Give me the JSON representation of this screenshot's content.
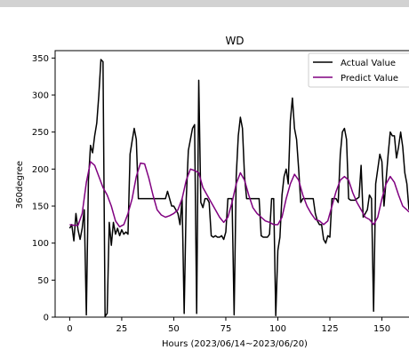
{
  "chart_data": {
    "type": "line",
    "title": "WD",
    "xlabel": "Hours (2023/06/14~2023/06/20)",
    "ylabel": "360degree",
    "xlim": [
      -7,
      166
    ],
    "ylim": [
      0,
      360
    ],
    "x_ticks": [
      0,
      25,
      50,
      75,
      100,
      125,
      150
    ],
    "y_ticks": [
      0,
      50,
      100,
      150,
      200,
      250,
      300,
      350
    ],
    "grid": false,
    "legend": "top-right",
    "series": [
      {
        "name": "Actual Value",
        "color": "#000000",
        "points": [
          [
            0,
            120
          ],
          [
            1,
            125
          ],
          [
            2,
            103
          ],
          [
            3,
            140
          ],
          [
            4,
            118
          ],
          [
            5,
            105
          ],
          [
            6,
            120
          ],
          [
            7,
            145
          ],
          [
            8,
            3
          ],
          [
            9,
            185
          ],
          [
            10,
            232
          ],
          [
            11,
            222
          ],
          [
            12,
            245
          ],
          [
            13,
            262
          ],
          [
            14,
            300
          ],
          [
            15,
            348
          ],
          [
            16,
            345
          ],
          [
            17,
            1
          ],
          [
            18,
            5
          ],
          [
            19,
            128
          ],
          [
            20,
            97
          ],
          [
            21,
            128
          ],
          [
            22,
            112
          ],
          [
            23,
            120
          ],
          [
            24,
            110
          ],
          [
            25,
            118
          ],
          [
            26,
            112
          ],
          [
            27,
            115
          ],
          [
            28,
            112
          ],
          [
            29,
            220
          ],
          [
            30,
            238
          ],
          [
            31,
            255
          ],
          [
            32,
            240
          ],
          [
            33,
            160
          ],
          [
            34,
            160
          ],
          [
            35,
            160
          ],
          [
            36,
            160
          ],
          [
            37,
            160
          ],
          [
            38,
            160
          ],
          [
            39,
            160
          ],
          [
            40,
            160
          ],
          [
            41,
            160
          ],
          [
            42,
            160
          ],
          [
            43,
            160
          ],
          [
            44,
            160
          ],
          [
            45,
            160
          ],
          [
            46,
            160
          ],
          [
            47,
            170
          ],
          [
            48,
            160
          ],
          [
            49,
            150
          ],
          [
            50,
            150
          ],
          [
            51,
            145
          ],
          [
            52,
            140
          ],
          [
            53,
            125
          ],
          [
            54,
            160
          ],
          [
            55,
            5
          ],
          [
            56,
            160
          ],
          [
            57,
            225
          ],
          [
            58,
            240
          ],
          [
            59,
            255
          ],
          [
            60,
            260
          ],
          [
            61,
            5
          ],
          [
            62,
            320
          ],
          [
            63,
            155
          ],
          [
            64,
            148
          ],
          [
            65,
            160
          ],
          [
            66,
            160
          ],
          [
            67,
            155
          ],
          [
            68,
            110
          ],
          [
            69,
            108
          ],
          [
            70,
            110
          ],
          [
            71,
            108
          ],
          [
            72,
            108
          ],
          [
            73,
            110
          ],
          [
            74,
            105
          ],
          [
            75,
            115
          ],
          [
            76,
            160
          ],
          [
            77,
            160
          ],
          [
            78,
            160
          ],
          [
            79,
            3
          ],
          [
            80,
            190
          ],
          [
            81,
            245
          ],
          [
            82,
            270
          ],
          [
            83,
            255
          ],
          [
            84,
            190
          ],
          [
            85,
            160
          ],
          [
            86,
            160
          ],
          [
            87,
            160
          ],
          [
            88,
            160
          ],
          [
            89,
            160
          ],
          [
            90,
            160
          ],
          [
            91,
            160
          ],
          [
            92,
            110
          ],
          [
            93,
            108
          ],
          [
            94,
            108
          ],
          [
            95,
            108
          ],
          [
            96,
            112
          ],
          [
            97,
            160
          ],
          [
            98,
            160
          ],
          [
            99,
            2
          ],
          [
            100,
            90
          ],
          [
            101,
            108
          ],
          [
            102,
            165
          ],
          [
            103,
            190
          ],
          [
            104,
            200
          ],
          [
            105,
            180
          ],
          [
            106,
            265
          ],
          [
            107,
            296
          ],
          [
            108,
            255
          ],
          [
            109,
            240
          ],
          [
            110,
            200
          ],
          [
            111,
            155
          ],
          [
            112,
            160
          ],
          [
            113,
            160
          ],
          [
            114,
            160
          ],
          [
            115,
            160
          ],
          [
            116,
            160
          ],
          [
            117,
            160
          ],
          [
            118,
            140
          ],
          [
            119,
            130
          ],
          [
            120,
            125
          ],
          [
            121,
            125
          ],
          [
            122,
            105
          ],
          [
            123,
            100
          ],
          [
            124,
            110
          ],
          [
            125,
            108
          ],
          [
            126,
            160
          ],
          [
            127,
            160
          ],
          [
            128,
            160
          ],
          [
            129,
            155
          ],
          [
            130,
            220
          ],
          [
            131,
            250
          ],
          [
            132,
            255
          ],
          [
            133,
            240
          ],
          [
            134,
            160
          ],
          [
            135,
            158
          ],
          [
            136,
            158
          ],
          [
            137,
            158
          ],
          [
            138,
            160
          ],
          [
            139,
            162
          ],
          [
            140,
            205
          ],
          [
            141,
            135
          ],
          [
            142,
            140
          ],
          [
            143,
            145
          ],
          [
            144,
            165
          ],
          [
            145,
            160
          ],
          [
            146,
            8
          ],
          [
            147,
            180
          ],
          [
            148,
            200
          ],
          [
            149,
            220
          ],
          [
            150,
            210
          ],
          [
            151,
            150
          ],
          [
            152,
            185
          ],
          [
            153,
            220
          ],
          [
            154,
            250
          ],
          [
            155,
            245
          ],
          [
            156,
            245
          ],
          [
            157,
            215
          ],
          [
            158,
            230
          ],
          [
            159,
            250
          ],
          [
            160,
            230
          ],
          [
            161,
            195
          ],
          [
            162,
            180
          ],
          [
            163,
            145
          ]
        ]
      },
      {
        "name": "Predict Value",
        "color": "#800080",
        "points": [
          [
            0,
            125
          ],
          [
            2,
            124
          ],
          [
            4,
            124
          ],
          [
            6,
            140
          ],
          [
            8,
            182
          ],
          [
            10,
            210
          ],
          [
            12,
            205
          ],
          [
            14,
            190
          ],
          [
            16,
            175
          ],
          [
            18,
            165
          ],
          [
            20,
            150
          ],
          [
            22,
            130
          ],
          [
            24,
            122
          ],
          [
            26,
            125
          ],
          [
            28,
            140
          ],
          [
            30,
            160
          ],
          [
            32,
            190
          ],
          [
            34,
            208
          ],
          [
            36,
            207
          ],
          [
            38,
            188
          ],
          [
            40,
            165
          ],
          [
            42,
            145
          ],
          [
            44,
            138
          ],
          [
            46,
            135
          ],
          [
            48,
            137
          ],
          [
            50,
            140
          ],
          [
            52,
            145
          ],
          [
            54,
            160
          ],
          [
            56,
            185
          ],
          [
            58,
            200
          ],
          [
            60,
            198
          ],
          [
            62,
            195
          ],
          [
            64,
            175
          ],
          [
            66,
            165
          ],
          [
            68,
            155
          ],
          [
            70,
            145
          ],
          [
            72,
            135
          ],
          [
            74,
            128
          ],
          [
            76,
            135
          ],
          [
            78,
            155
          ],
          [
            80,
            180
          ],
          [
            82,
            195
          ],
          [
            84,
            185
          ],
          [
            86,
            165
          ],
          [
            88,
            148
          ],
          [
            90,
            140
          ],
          [
            92,
            135
          ],
          [
            94,
            130
          ],
          [
            96,
            128
          ],
          [
            98,
            125
          ],
          [
            100,
            125
          ],
          [
            102,
            135
          ],
          [
            104,
            160
          ],
          [
            106,
            180
          ],
          [
            108,
            193
          ],
          [
            110,
            185
          ],
          [
            112,
            165
          ],
          [
            114,
            150
          ],
          [
            116,
            140
          ],
          [
            118,
            132
          ],
          [
            120,
            130
          ],
          [
            122,
            125
          ],
          [
            124,
            130
          ],
          [
            126,
            150
          ],
          [
            128,
            170
          ],
          [
            130,
            185
          ],
          [
            132,
            190
          ],
          [
            134,
            185
          ],
          [
            136,
            168
          ],
          [
            138,
            155
          ],
          [
            140,
            145
          ],
          [
            142,
            135
          ],
          [
            144,
            132
          ],
          [
            146,
            125
          ],
          [
            148,
            135
          ],
          [
            150,
            160
          ],
          [
            152,
            180
          ],
          [
            154,
            190
          ],
          [
            156,
            182
          ],
          [
            158,
            165
          ],
          [
            160,
            150
          ],
          [
            162,
            145
          ],
          [
            163,
            142
          ]
        ]
      }
    ]
  }
}
